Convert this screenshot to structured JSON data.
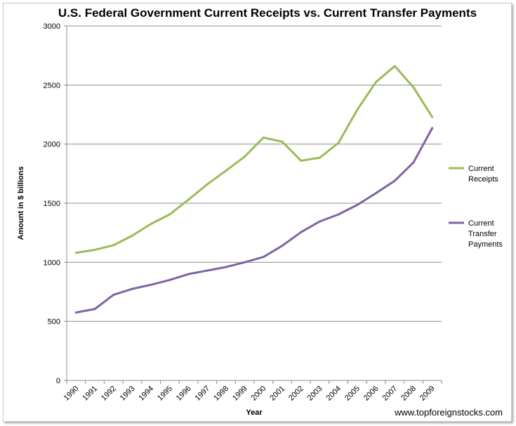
{
  "chart_data": {
    "type": "line",
    "title": "U.S. Federal Government Current Receipts vs. Current Transfer Payments",
    "xlabel": "Year",
    "ylabel": "Amount in $ billions",
    "ylim": [
      0,
      3000
    ],
    "yticks": [
      "0",
      "500",
      "1000",
      "1500",
      "2000",
      "2500",
      "3000"
    ],
    "grid": true,
    "legend_position": "right",
    "categories": [
      "1990",
      "1991",
      "1992",
      "1993",
      "1994",
      "1995",
      "1996",
      "1997",
      "1998",
      "1999",
      "2000",
      "2001",
      "2002",
      "2003",
      "2004",
      "2005",
      "2006",
      "2007",
      "2008",
      "2009"
    ],
    "series": [
      {
        "name": "Current Receipts",
        "legend_lines": [
          "Current",
          "Receipts"
        ],
        "color": "#9bbb59",
        "values": [
          1080,
          1105,
          1145,
          1225,
          1325,
          1405,
          1530,
          1660,
          1775,
          1895,
          2055,
          2020,
          1860,
          1885,
          2010,
          2290,
          2525,
          2660,
          2480,
          2230
        ]
      },
      {
        "name": "Current Transfer Payments",
        "legend_lines": [
          "Current",
          "Transfer",
          "Payments"
        ],
        "color": "#8064a2",
        "values": [
          575,
          605,
          725,
          775,
          810,
          850,
          900,
          930,
          960,
          1000,
          1045,
          1140,
          1255,
          1345,
          1405,
          1485,
          1585,
          1690,
          1845,
          2135
        ]
      }
    ],
    "watermark": "www.topforeignstocks.com"
  },
  "colors": {
    "gridline": "#8c8c8c",
    "axis": "#8c8c8c",
    "frame_border": "#c9c9c9"
  }
}
